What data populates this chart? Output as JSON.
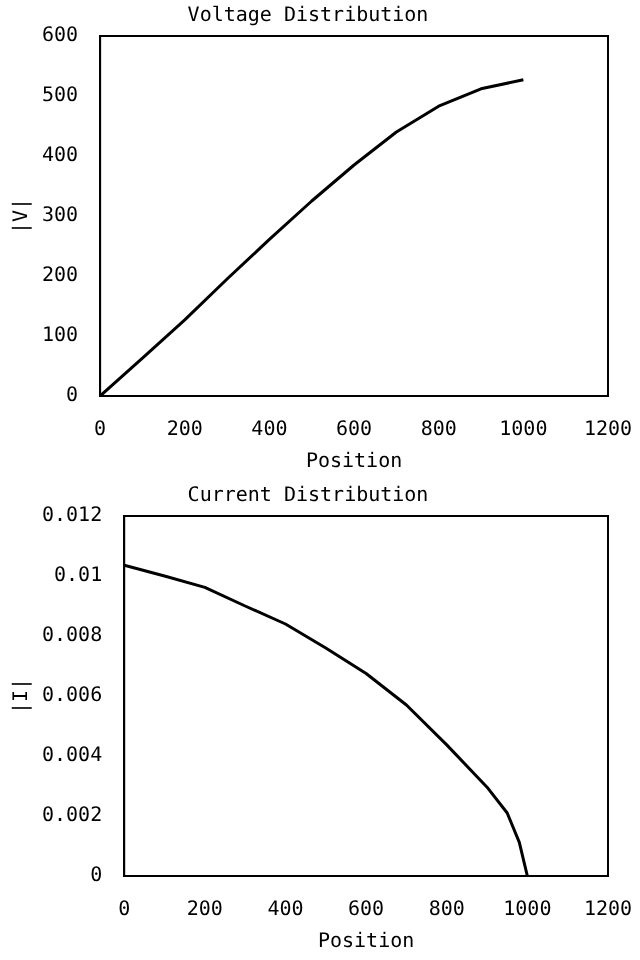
{
  "chart_data": [
    {
      "type": "line",
      "title": "Voltage Distribution",
      "xlabel": "Position",
      "ylabel": "|V|",
      "x": [
        0,
        100,
        200,
        300,
        400,
        500,
        600,
        700,
        800,
        900,
        1000
      ],
      "values": [
        0,
        63,
        127,
        195,
        261,
        325,
        385,
        440,
        483,
        512,
        527
      ],
      "color": "#000000",
      "xlim": [
        0,
        1200
      ],
      "xticks": [
        0,
        200,
        400,
        600,
        800,
        1000,
        1200
      ],
      "ylim": [
        0,
        600
      ],
      "yticks": [
        0,
        100,
        200,
        300,
        400,
        500,
        600
      ]
    },
    {
      "type": "line",
      "title": "Current Distribution",
      "xlabel": "Position",
      "ylabel": "|I|",
      "x": [
        0,
        100,
        200,
        300,
        400,
        500,
        600,
        700,
        800,
        900,
        950,
        980,
        1000
      ],
      "values": [
        0.01036,
        0.01,
        0.00962,
        0.009,
        0.0084,
        0.0076,
        0.00675,
        0.0057,
        0.00437,
        0.00296,
        0.0021,
        0.00112,
        0
      ],
      "color": "#000000",
      "xlim": [
        0,
        1200
      ],
      "xticks": [
        0,
        200,
        400,
        600,
        800,
        1000,
        1200
      ],
      "ylim": [
        0,
        0.012
      ],
      "yticks": [
        0,
        0.002,
        0.004,
        0.006,
        0.008,
        0.01,
        0.012
      ]
    }
  ]
}
